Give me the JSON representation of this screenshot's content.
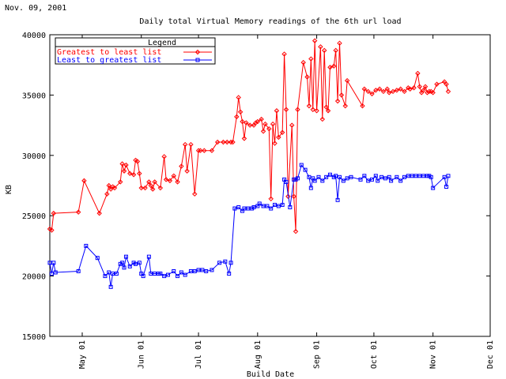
{
  "date_stamp": "Nov. 09, 2001",
  "chart_data": {
    "type": "line",
    "title": "Daily total Virtual Memory readings of the 6th url load",
    "xlabel": "Build Date",
    "ylabel": "KB",
    "ylim": [
      15000,
      40000
    ],
    "yticks": [
      15000,
      20000,
      25000,
      30000,
      35000,
      40000
    ],
    "xlim": [
      "2001-04-14",
      "2001-12-01"
    ],
    "xticks": [
      {
        "date": "2001-05-01",
        "label": "May 01"
      },
      {
        "date": "2001-06-01",
        "label": "Jun 01"
      },
      {
        "date": "2001-07-01",
        "label": "Jul 01"
      },
      {
        "date": "2001-08-01",
        "label": "Aug 01"
      },
      {
        "date": "2001-09-01",
        "label": "Sep 01"
      },
      {
        "date": "2001-10-01",
        "label": "Oct 01"
      },
      {
        "date": "2001-11-01",
        "label": "Nov 01"
      },
      {
        "date": "2001-12-01",
        "label": "Dec 01"
      }
    ],
    "grid": false,
    "legend": {
      "title": "Legend",
      "position": "top-left"
    },
    "series": [
      {
        "name": "Greatest to least list",
        "color": "#ff0000",
        "marker": "diamond",
        "points": [
          [
            "2001-04-14",
            23900
          ],
          [
            "2001-04-15",
            23800
          ],
          [
            "2001-04-16",
            25200
          ],
          [
            "2001-04-29",
            25300
          ],
          [
            "2001-05-02",
            27900
          ],
          [
            "2001-05-10",
            25200
          ],
          [
            "2001-05-14",
            26800
          ],
          [
            "2001-05-15",
            27500
          ],
          [
            "2001-05-16",
            27200
          ],
          [
            "2001-05-17",
            27400
          ],
          [
            "2001-05-18",
            27300
          ],
          [
            "2001-05-21",
            27800
          ],
          [
            "2001-05-22",
            29300
          ],
          [
            "2001-05-23",
            28700
          ],
          [
            "2001-05-24",
            29200
          ],
          [
            "2001-05-26",
            28500
          ],
          [
            "2001-05-28",
            28400
          ],
          [
            "2001-05-29",
            29600
          ],
          [
            "2001-05-30",
            29500
          ],
          [
            "2001-05-31",
            28500
          ],
          [
            "2001-06-01",
            27300
          ],
          [
            "2001-06-03",
            27300
          ],
          [
            "2001-06-05",
            27800
          ],
          [
            "2001-06-06",
            27500
          ],
          [
            "2001-06-07",
            27200
          ],
          [
            "2001-06-08",
            27800
          ],
          [
            "2001-06-11",
            27300
          ],
          [
            "2001-06-13",
            29900
          ],
          [
            "2001-06-14",
            28000
          ],
          [
            "2001-06-16",
            27900
          ],
          [
            "2001-06-18",
            28300
          ],
          [
            "2001-06-20",
            27800
          ],
          [
            "2001-06-22",
            29100
          ],
          [
            "2001-06-24",
            30900
          ],
          [
            "2001-06-25",
            28700
          ],
          [
            "2001-06-27",
            30900
          ],
          [
            "2001-06-29",
            26800
          ],
          [
            "2001-07-01",
            30400
          ],
          [
            "2001-07-02",
            30400
          ],
          [
            "2001-07-04",
            30400
          ],
          [
            "2001-07-08",
            30400
          ],
          [
            "2001-07-11",
            31100
          ],
          [
            "2001-07-14",
            31100
          ],
          [
            "2001-07-16",
            31100
          ],
          [
            "2001-07-18",
            31100
          ],
          [
            "2001-07-19",
            31100
          ],
          [
            "2001-07-21",
            33200
          ],
          [
            "2001-07-22",
            34800
          ],
          [
            "2001-07-23",
            33600
          ],
          [
            "2001-07-24",
            32800
          ],
          [
            "2001-07-25",
            31400
          ],
          [
            "2001-07-26",
            32700
          ],
          [
            "2001-07-28",
            32500
          ],
          [
            "2001-07-30",
            32500
          ],
          [
            "2001-07-31",
            32700
          ],
          [
            "2001-08-01",
            32800
          ],
          [
            "2001-08-03",
            33000
          ],
          [
            "2001-08-04",
            32000
          ],
          [
            "2001-08-05",
            32600
          ],
          [
            "2001-08-07",
            32200
          ],
          [
            "2001-08-08",
            26400
          ],
          [
            "2001-08-09",
            32600
          ],
          [
            "2001-08-10",
            31000
          ],
          [
            "2001-08-11",
            33700
          ],
          [
            "2001-08-12",
            31500
          ],
          [
            "2001-08-14",
            31900
          ],
          [
            "2001-08-15",
            38400
          ],
          [
            "2001-08-16",
            33800
          ],
          [
            "2001-08-17",
            26600
          ],
          [
            "2001-08-19",
            32500
          ],
          [
            "2001-08-20",
            26600
          ],
          [
            "2001-08-21",
            23700
          ],
          [
            "2001-08-22",
            33800
          ],
          [
            "2001-08-25",
            37700
          ],
          [
            "2001-08-27",
            36500
          ],
          [
            "2001-08-28",
            34100
          ],
          [
            "2001-08-29",
            38000
          ],
          [
            "2001-08-30",
            33800
          ],
          [
            "2001-08-31",
            39500
          ],
          [
            "2001-09-01",
            33700
          ],
          [
            "2001-09-03",
            39000
          ],
          [
            "2001-09-04",
            33000
          ],
          [
            "2001-09-05",
            38700
          ],
          [
            "2001-09-06",
            34000
          ],
          [
            "2001-09-07",
            33700
          ],
          [
            "2001-09-08",
            37300
          ],
          [
            "2001-09-10",
            37400
          ],
          [
            "2001-09-11",
            38700
          ],
          [
            "2001-09-12",
            34500
          ],
          [
            "2001-09-13",
            39300
          ],
          [
            "2001-09-14",
            35000
          ],
          [
            "2001-09-16",
            34100
          ],
          [
            "2001-09-17",
            36200
          ],
          [
            "2001-09-25",
            34100
          ],
          [
            "2001-09-26",
            35500
          ],
          [
            "2001-09-28",
            35300
          ],
          [
            "2001-09-30",
            35100
          ],
          [
            "2001-10-02",
            35400
          ],
          [
            "2001-10-04",
            35500
          ],
          [
            "2001-10-06",
            35300
          ],
          [
            "2001-10-08",
            35500
          ],
          [
            "2001-10-09",
            35200
          ],
          [
            "2001-10-11",
            35300
          ],
          [
            "2001-10-13",
            35400
          ],
          [
            "2001-10-15",
            35500
          ],
          [
            "2001-10-17",
            35300
          ],
          [
            "2001-10-19",
            35600
          ],
          [
            "2001-10-20",
            35500
          ],
          [
            "2001-10-22",
            35600
          ],
          [
            "2001-10-24",
            36800
          ],
          [
            "2001-10-25",
            35700
          ],
          [
            "2001-10-26",
            35200
          ],
          [
            "2001-10-27",
            35400
          ],
          [
            "2001-10-28",
            35700
          ],
          [
            "2001-10-29",
            35200
          ],
          [
            "2001-10-30",
            35300
          ],
          [
            "2001-10-31",
            35300
          ],
          [
            "2001-11-01",
            35200
          ],
          [
            "2001-11-03",
            35900
          ],
          [
            "2001-11-07",
            36100
          ],
          [
            "2001-11-08",
            35900
          ],
          [
            "2001-11-09",
            35300
          ]
        ]
      },
      {
        "name": "Least to greatest list",
        "color": "#0000ff",
        "marker": "square",
        "points": [
          [
            "2001-04-14",
            21100
          ],
          [
            "2001-04-15",
            20200
          ],
          [
            "2001-04-16",
            21100
          ],
          [
            "2001-04-17",
            20300
          ],
          [
            "2001-04-29",
            20400
          ],
          [
            "2001-05-03",
            22500
          ],
          [
            "2001-05-09",
            21500
          ],
          [
            "2001-05-13",
            20000
          ],
          [
            "2001-05-15",
            20300
          ],
          [
            "2001-05-16",
            19100
          ],
          [
            "2001-05-17",
            20200
          ],
          [
            "2001-05-19",
            20200
          ],
          [
            "2001-05-21",
            21000
          ],
          [
            "2001-05-22",
            21100
          ],
          [
            "2001-05-23",
            20700
          ],
          [
            "2001-05-24",
            21600
          ],
          [
            "2001-05-26",
            20800
          ],
          [
            "2001-05-28",
            21100
          ],
          [
            "2001-05-29",
            21000
          ],
          [
            "2001-05-31",
            21100
          ],
          [
            "2001-06-01",
            20200
          ],
          [
            "2001-06-02",
            20000
          ],
          [
            "2001-06-05",
            21600
          ],
          [
            "2001-06-06",
            20200
          ],
          [
            "2001-06-08",
            20200
          ],
          [
            "2001-06-10",
            20200
          ],
          [
            "2001-06-11",
            20200
          ],
          [
            "2001-06-13",
            20000
          ],
          [
            "2001-06-15",
            20100
          ],
          [
            "2001-06-18",
            20400
          ],
          [
            "2001-06-20",
            20000
          ],
          [
            "2001-06-22",
            20300
          ],
          [
            "2001-06-24",
            20100
          ],
          [
            "2001-06-27",
            20400
          ],
          [
            "2001-06-29",
            20400
          ],
          [
            "2001-07-01",
            20500
          ],
          [
            "2001-07-03",
            20500
          ],
          [
            "2001-07-05",
            20400
          ],
          [
            "2001-07-08",
            20500
          ],
          [
            "2001-07-12",
            21100
          ],
          [
            "2001-07-15",
            21200
          ],
          [
            "2001-07-17",
            20200
          ],
          [
            "2001-07-18",
            21100
          ],
          [
            "2001-07-20",
            25600
          ],
          [
            "2001-07-22",
            25700
          ],
          [
            "2001-07-24",
            25400
          ],
          [
            "2001-07-25",
            25600
          ],
          [
            "2001-07-27",
            25600
          ],
          [
            "2001-07-29",
            25600
          ],
          [
            "2001-07-30",
            25700
          ],
          [
            "2001-08-01",
            25800
          ],
          [
            "2001-08-02",
            26000
          ],
          [
            "2001-08-04",
            25800
          ],
          [
            "2001-08-06",
            25800
          ],
          [
            "2001-08-08",
            25600
          ],
          [
            "2001-08-10",
            25900
          ],
          [
            "2001-08-12",
            25800
          ],
          [
            "2001-08-14",
            25900
          ],
          [
            "2001-08-15",
            28000
          ],
          [
            "2001-08-16",
            27800
          ],
          [
            "2001-08-18",
            25700
          ],
          [
            "2001-08-20",
            28000
          ],
          [
            "2001-08-21",
            28000
          ],
          [
            "2001-08-22",
            28100
          ],
          [
            "2001-08-24",
            29200
          ],
          [
            "2001-08-26",
            28800
          ],
          [
            "2001-08-28",
            28200
          ],
          [
            "2001-08-29",
            27300
          ],
          [
            "2001-08-30",
            28100
          ],
          [
            "2001-08-31",
            27900
          ],
          [
            "2001-09-02",
            28200
          ],
          [
            "2001-09-04",
            27900
          ],
          [
            "2001-09-06",
            28200
          ],
          [
            "2001-09-08",
            28400
          ],
          [
            "2001-09-10",
            28200
          ],
          [
            "2001-09-11",
            28300
          ],
          [
            "2001-09-12",
            26300
          ],
          [
            "2001-09-13",
            28200
          ],
          [
            "2001-09-15",
            27900
          ],
          [
            "2001-09-17",
            28100
          ],
          [
            "2001-09-19",
            28200
          ],
          [
            "2001-09-24",
            28000
          ],
          [
            "2001-09-26",
            28300
          ],
          [
            "2001-09-28",
            27900
          ],
          [
            "2001-09-30",
            28000
          ],
          [
            "2001-10-02",
            28300
          ],
          [
            "2001-10-03",
            27900
          ],
          [
            "2001-10-05",
            28200
          ],
          [
            "2001-10-07",
            28100
          ],
          [
            "2001-10-09",
            28200
          ],
          [
            "2001-10-10",
            27900
          ],
          [
            "2001-10-13",
            28200
          ],
          [
            "2001-10-15",
            27900
          ],
          [
            "2001-10-17",
            28200
          ],
          [
            "2001-10-19",
            28300
          ],
          [
            "2001-10-21",
            28300
          ],
          [
            "2001-10-23",
            28300
          ],
          [
            "2001-10-25",
            28300
          ],
          [
            "2001-10-27",
            28300
          ],
          [
            "2001-10-29",
            28300
          ],
          [
            "2001-10-30",
            28300
          ],
          [
            "2001-10-31",
            28200
          ],
          [
            "2001-11-01",
            27300
          ],
          [
            "2001-11-07",
            28200
          ],
          [
            "2001-11-08",
            27400
          ],
          [
            "2001-11-09",
            28300
          ]
        ]
      }
    ]
  }
}
